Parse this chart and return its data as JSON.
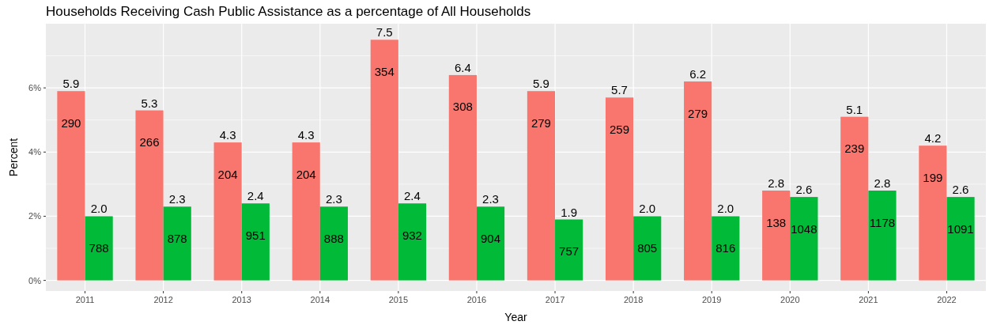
{
  "chart_data": {
    "type": "bar",
    "title": "Households Receiving Cash Public Assistance as a percentage of All Households",
    "xlabel": "Year",
    "ylabel": "Percent",
    "categories": [
      "2011",
      "2012",
      "2013",
      "2014",
      "2015",
      "2016",
      "2017",
      "2018",
      "2019",
      "2020",
      "2021",
      "2022"
    ],
    "series": [
      {
        "color": "#f8766d",
        "values": [
          5.9,
          5.3,
          4.3,
          4.3,
          7.5,
          6.4,
          5.9,
          5.7,
          6.2,
          2.8,
          5.1,
          4.2
        ],
        "value_labels": [
          "5.9",
          "5.3",
          "4.3",
          "4.3",
          "7.5",
          "6.4",
          "5.9",
          "5.7",
          "6.2",
          "2.8",
          "5.1",
          "4.2"
        ]
      },
      {
        "color": "#00ba38",
        "values": [
          2.0,
          2.3,
          2.4,
          2.3,
          2.4,
          2.3,
          1.9,
          2.0,
          2.0,
          2.6,
          2.8,
          2.6
        ],
        "value_labels": [
          "2.0",
          "2.3",
          "2.4",
          "2.3",
          "2.4",
          "2.3",
          "1.9",
          "2.0",
          "2.0",
          "2.6",
          "2.8",
          "2.6"
        ]
      }
    ],
    "annotations": [
      {
        "text": "290",
        "x": "2011",
        "y": 4.9
      },
      {
        "text": "788",
        "x": "2011",
        "y": 1.0
      },
      {
        "text": "266",
        "x": "2012",
        "y": 4.3
      },
      {
        "text": "878",
        "x": "2012",
        "y": 1.3
      },
      {
        "text": "204",
        "x": "2013",
        "y": 3.3
      },
      {
        "text": "951",
        "x": "2013",
        "y": 1.4
      },
      {
        "text": "204",
        "x": "2014",
        "y": 3.3
      },
      {
        "text": "888",
        "x": "2014",
        "y": 1.3
      },
      {
        "text": "354",
        "x": "2015",
        "y": 6.5
      },
      {
        "text": "932",
        "x": "2015",
        "y": 1.4
      },
      {
        "text": "308",
        "x": "2016",
        "y": 5.4
      },
      {
        "text": "904",
        "x": "2016",
        "y": 1.3
      },
      {
        "text": "279",
        "x": "2017",
        "y": 4.9
      },
      {
        "text": "757",
        "x": "2017",
        "y": 0.9
      },
      {
        "text": "259",
        "x": "2018",
        "y": 4.7
      },
      {
        "text": "805",
        "x": "2018",
        "y": 1.0
      },
      {
        "text": "279",
        "x": "2019",
        "y": 5.2
      },
      {
        "text": "816",
        "x": "2019",
        "y": 1.0
      },
      {
        "text": "138",
        "x": "2020",
        "y": 1.8
      },
      {
        "text": "1048",
        "x": "2020",
        "y": 1.6
      },
      {
        "text": "239",
        "x": "2021",
        "y": 4.1
      },
      {
        "text": "1178",
        "x": "2021",
        "y": 1.8
      },
      {
        "text": "199",
        "x": "2022",
        "y": 3.2
      },
      {
        "text": "1091",
        "x": "2022",
        "y": 1.6
      }
    ],
    "ylim": [
      -0.33,
      8.0
    ],
    "yticks": [
      {
        "value": 0,
        "label": "0%"
      },
      {
        "value": 2,
        "label": "2%"
      },
      {
        "value": 4,
        "label": "4%"
      },
      {
        "value": 6,
        "label": "6%"
      }
    ],
    "grid": true
  }
}
